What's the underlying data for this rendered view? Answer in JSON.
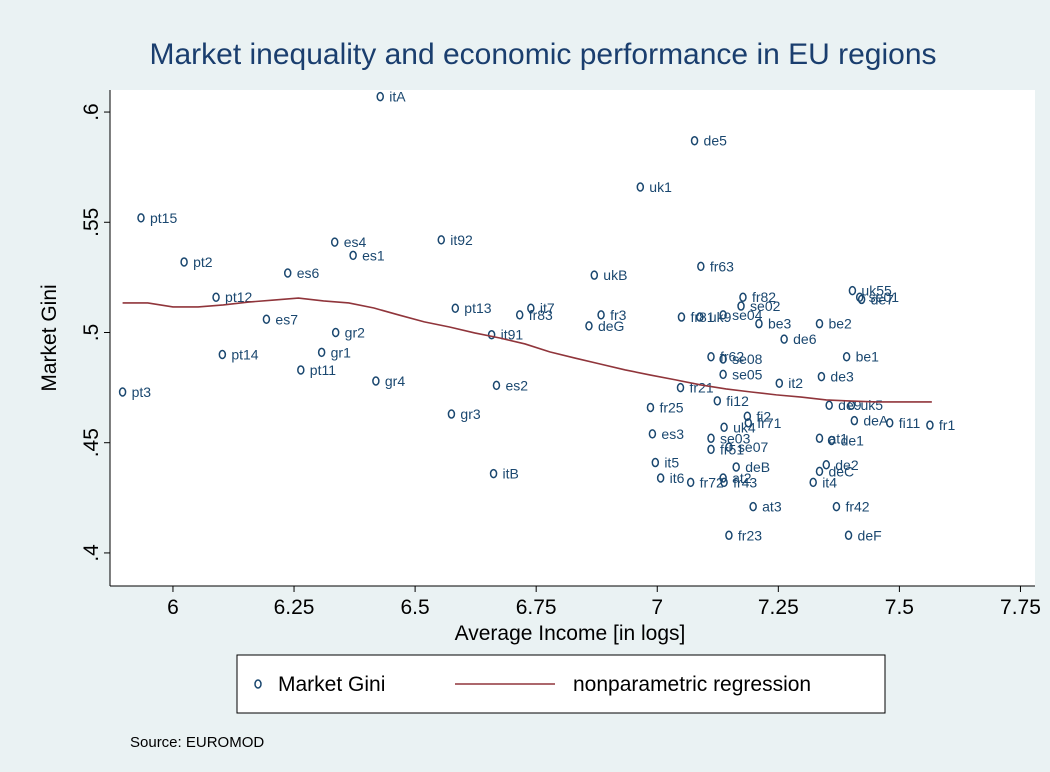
{
  "chart_data": {
    "type": "scatter",
    "title": "Market inequality and economic performance in EU regions",
    "x_label": "Average Income [in logs]",
    "y_label": "Market Gini",
    "source": "Source: EUROMOD",
    "xlim": [
      5.87,
      7.78
    ],
    "ylim": [
      0.385,
      0.61
    ],
    "xticks": [
      6,
      6.25,
      6.5,
      6.75,
      7,
      7.25,
      7.5,
      7.75
    ],
    "yticks": [
      {
        "value": 0.4,
        "label": ".4"
      },
      {
        "value": 0.45,
        "label": ".45"
      },
      {
        "value": 0.5,
        "label": ".5"
      },
      {
        "value": 0.55,
        "label": ".55"
      },
      {
        "value": 0.6,
        "label": ".6"
      }
    ],
    "grid": false,
    "series": [
      {
        "name": "Market Gini",
        "type": "scatter",
        "color": "#1a476f",
        "point_labels": [
          "itA",
          "de5",
          "uk1",
          "pt15",
          "it92",
          "es4",
          "es1",
          "pt2",
          "es6",
          "fr63",
          "ukB",
          "pt12",
          "es7",
          "pt13",
          "it7",
          "fr83",
          "fr3",
          "deG",
          "gr2",
          "it91",
          "gr1",
          "pt14",
          "pt11",
          "gr4",
          "es2",
          "pt3",
          "gr3",
          "itB",
          "be2",
          "be3",
          "de6",
          "be1",
          "de3",
          "se02",
          "se04",
          "fr82",
          "uk55",
          "se01",
          "de7",
          "fr81",
          "uk9",
          "fr62",
          "se08",
          "se05",
          "fr21",
          "de9",
          "uk5",
          "deA",
          "fi11",
          "fr1",
          "fi12",
          "fr25",
          "fi2",
          "fr71",
          "uk4",
          "at1",
          "de1",
          "es3",
          "se03",
          "se07",
          "fr51",
          "it5",
          "deB",
          "de2",
          "deC",
          "it6",
          "fr72",
          "at2",
          "fr43",
          "it4",
          "fr42",
          "at3",
          "fr23",
          "deF",
          "it2"
        ],
        "x": [
          6.428,
          7.077,
          6.965,
          5.934,
          6.554,
          6.334,
          6.372,
          6.023,
          6.237,
          7.09,
          6.87,
          6.089,
          6.193,
          6.583,
          6.739,
          6.716,
          6.884,
          6.859,
          6.336,
          6.658,
          6.307,
          6.102,
          6.264,
          6.419,
          6.668,
          5.896,
          6.575,
          6.662,
          7.335,
          7.21,
          7.262,
          7.391,
          7.339,
          7.173,
          7.136,
          7.177,
          7.403,
          7.418,
          7.422,
          7.05,
          7.088,
          7.111,
          7.136,
          7.136,
          7.048,
          7.355,
          7.401,
          7.407,
          7.48,
          7.563,
          7.124,
          6.986,
          7.186,
          7.188,
          7.138,
          7.335,
          7.36,
          6.99,
          7.111,
          7.148,
          7.111,
          6.996,
          7.163,
          7.349,
          7.335,
          7.007,
          7.069,
          7.136,
          7.138,
          7.322,
          7.37,
          7.198,
          7.148,
          7.395,
          7.252
        ],
        "values": [
          0.607,
          0.587,
          0.566,
          0.552,
          0.542,
          0.541,
          0.535,
          0.532,
          0.527,
          0.53,
          0.526,
          0.516,
          0.506,
          0.511,
          0.511,
          0.508,
          0.508,
          0.503,
          0.5,
          0.499,
          0.491,
          0.49,
          0.483,
          0.478,
          0.476,
          0.473,
          0.463,
          0.436,
          0.504,
          0.504,
          0.497,
          0.489,
          0.48,
          0.512,
          0.508,
          0.516,
          0.519,
          0.516,
          0.515,
          0.507,
          0.507,
          0.489,
          0.488,
          0.481,
          0.475,
          0.467,
          0.467,
          0.46,
          0.459,
          0.458,
          0.469,
          0.466,
          0.462,
          0.459,
          0.457,
          0.452,
          0.451,
          0.454,
          0.452,
          0.448,
          0.447,
          0.441,
          0.439,
          0.44,
          0.437,
          0.434,
          0.432,
          0.434,
          0.432,
          0.432,
          0.421,
          0.421,
          0.408,
          0.408,
          0.477
        ]
      },
      {
        "name": "nonparametric regression",
        "type": "line",
        "color": "#90353b",
        "x": [
          5.896,
          5.948,
          6,
          6.052,
          6.104,
          6.156,
          6.208,
          6.259,
          6.311,
          6.363,
          6.415,
          6.467,
          6.519,
          6.571,
          6.623,
          6.675,
          6.727,
          6.778,
          6.83,
          6.882,
          6.934,
          6.986,
          7.038,
          7.09,
          7.142,
          7.194,
          7.246,
          7.297,
          7.349,
          7.401,
          7.453,
          7.505,
          7.567
        ],
        "values": [
          0.5134,
          0.5134,
          0.5116,
          0.5116,
          0.5125,
          0.5138,
          0.5147,
          0.5156,
          0.5143,
          0.5134,
          0.5111,
          0.5079,
          0.5048,
          0.5025,
          0.4998,
          0.4975,
          0.4948,
          0.4912,
          0.4884,
          0.4857,
          0.483,
          0.4807,
          0.4785,
          0.4762,
          0.4744,
          0.473,
          0.4717,
          0.4707,
          0.4694,
          0.4689,
          0.4685,
          0.4685,
          0.4685
        ]
      }
    ]
  }
}
